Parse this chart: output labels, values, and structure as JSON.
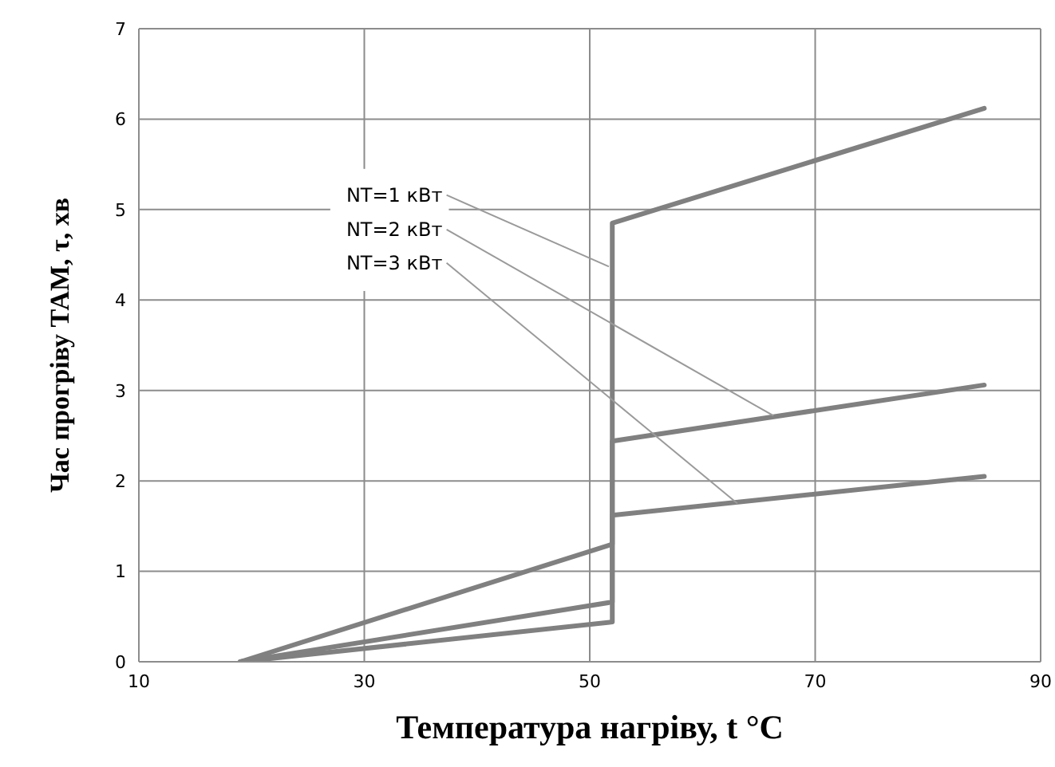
{
  "chart_data": {
    "type": "line",
    "xlabel": "Температура нагріву, t °C",
    "ylabel": "Час прогріву ТАМ, τ, хв",
    "xlim": [
      10,
      90
    ],
    "xticks": [
      10,
      30,
      50,
      70,
      90
    ],
    "ylim": [
      0,
      7
    ],
    "yticks": [
      0,
      1,
      2,
      3,
      4,
      5,
      6,
      7
    ],
    "grid": true,
    "marker": "none",
    "line_style": "solid",
    "series": [
      {
        "color": "#808080",
        "x": [
          19,
          52,
          52,
          85
        ],
        "values": [
          0,
          1.3,
          4.85,
          6.12
        ]
      },
      {
        "color": "#808080",
        "x": [
          19,
          52,
          52,
          85
        ],
        "values": [
          0,
          0.66,
          2.44,
          3.06
        ]
      },
      {
        "color": "#808080",
        "x": [
          19,
          52,
          52,
          85
        ],
        "values": [
          0,
          0.44,
          1.62,
          2.05
        ]
      }
    ],
    "annotations": [
      {
        "text": "NT=1 кВт",
        "x": 51.7,
        "y": 4.37
      },
      {
        "text": "NT=2 кВт",
        "x": 66.3,
        "y": 2.72
      },
      {
        "text": "NT=3 кВт",
        "x": 63.1,
        "y": 1.75
      }
    ]
  }
}
